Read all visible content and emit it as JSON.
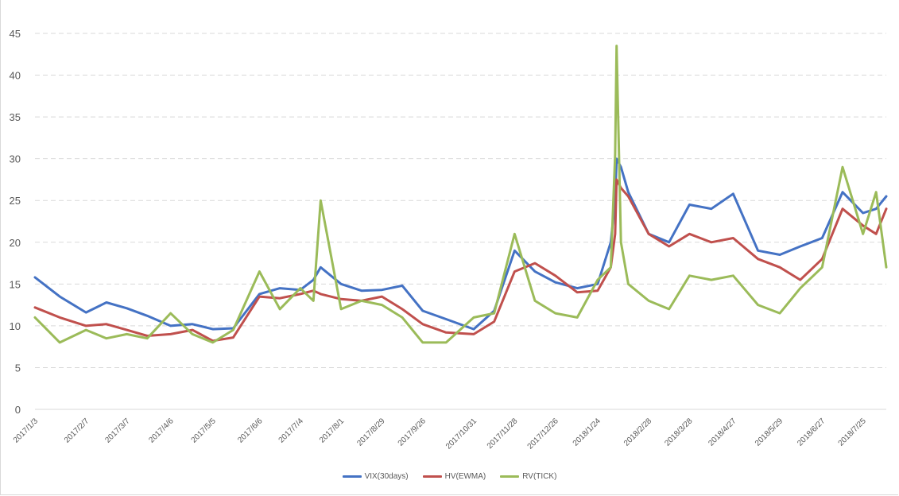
{
  "chart_data": {
    "type": "line",
    "title": "",
    "xlabel": "",
    "ylabel": "",
    "ylim": [
      0,
      45
    ],
    "yticks": [
      0,
      5,
      10,
      15,
      20,
      25,
      30,
      35,
      40,
      45
    ],
    "grid": "horizontal dashed",
    "legend_position": "bottom",
    "x_tick_labels": [
      "2017/1/3",
      "2017/2/7",
      "2017/3/7",
      "2017/4/6",
      "2017/5/5",
      "2017/6/6",
      "2017/7/4",
      "2017/8/1",
      "2017/8/29",
      "2017/9/26",
      "2017/10/31",
      "2017/11/28",
      "2017/12/26",
      "2018/1/24",
      "2018/2/28",
      "2018/3/28",
      "2018/4/27",
      "2018/5/29",
      "2018/6/27",
      "2018/7/25"
    ],
    "x": [
      "2017/1/3",
      "2017/1/20",
      "2017/2/7",
      "2017/2/21",
      "2017/3/7",
      "2017/3/21",
      "2017/4/6",
      "2017/4/21",
      "2017/5/5",
      "2017/5/19",
      "2017/6/6",
      "2017/6/20",
      "2017/7/4",
      "2017/7/13",
      "2017/7/18",
      "2017/8/1",
      "2017/8/15",
      "2017/8/29",
      "2017/9/12",
      "2017/9/26",
      "2017/10/12",
      "2017/10/31",
      "2017/11/14",
      "2017/11/28",
      "2017/12/12",
      "2017/12/26",
      "2018/1/10",
      "2018/1/24",
      "2018/2/2",
      "2018/2/5",
      "2018/2/6",
      "2018/2/9",
      "2018/2/14",
      "2018/2/28",
      "2018/3/14",
      "2018/3/28",
      "2018/4/12",
      "2018/4/27",
      "2018/5/14",
      "2018/5/29",
      "2018/6/12",
      "2018/6/27",
      "2018/7/11",
      "2018/7/25",
      "2018/8/3",
      "2018/8/10"
    ],
    "series": [
      {
        "name": "VIX(30days)",
        "color": "#4472c4",
        "values": [
          15.8,
          13.5,
          11.6,
          12.8,
          12.1,
          11.2,
          10.0,
          10.2,
          9.6,
          9.7,
          13.8,
          14.5,
          14.3,
          15.5,
          17.0,
          15.0,
          14.2,
          14.3,
          14.8,
          11.8,
          10.8,
          9.6,
          11.8,
          19.0,
          16.5,
          15.2,
          14.5,
          15.0,
          20.0,
          25.0,
          30.0,
          29.0,
          26.0,
          21.0,
          20.0,
          24.5,
          24.0,
          25.8,
          19.0,
          18.5,
          19.5,
          20.5,
          26.0,
          23.5,
          24.0,
          25.5
        ]
      },
      {
        "name": "HV(EWMA)",
        "color": "#c0504d",
        "values": [
          12.2,
          11.0,
          10.0,
          10.2,
          9.5,
          8.8,
          9.0,
          9.5,
          8.2,
          8.6,
          13.5,
          13.3,
          13.8,
          14.2,
          13.8,
          13.2,
          13.0,
          13.5,
          12.0,
          10.2,
          9.2,
          9.0,
          10.5,
          16.5,
          17.5,
          16.0,
          14.0,
          14.2,
          17.0,
          21.0,
          27.5,
          26.5,
          25.5,
          21.0,
          19.5,
          21.0,
          20.0,
          20.5,
          18.0,
          17.0,
          15.5,
          18.0,
          24.0,
          22.0,
          21.0,
          24.0
        ]
      },
      {
        "name": "RV(TICK)",
        "color": "#9bbb59",
        "values": [
          11.0,
          8.0,
          9.5,
          8.5,
          9.0,
          8.5,
          11.5,
          9.0,
          8.0,
          9.5,
          16.5,
          12.0,
          14.5,
          13.0,
          25.0,
          12.0,
          13.0,
          12.5,
          11.0,
          8.0,
          8.0,
          11.0,
          11.5,
          21.0,
          13.0,
          11.5,
          11.0,
          15.5,
          17.0,
          30.5,
          43.5,
          20.0,
          15.0,
          13.0,
          12.0,
          16.0,
          15.5,
          16.0,
          12.5,
          11.5,
          14.5,
          17.0,
          29.0,
          21.0,
          26.0,
          17.0
        ]
      }
    ]
  }
}
